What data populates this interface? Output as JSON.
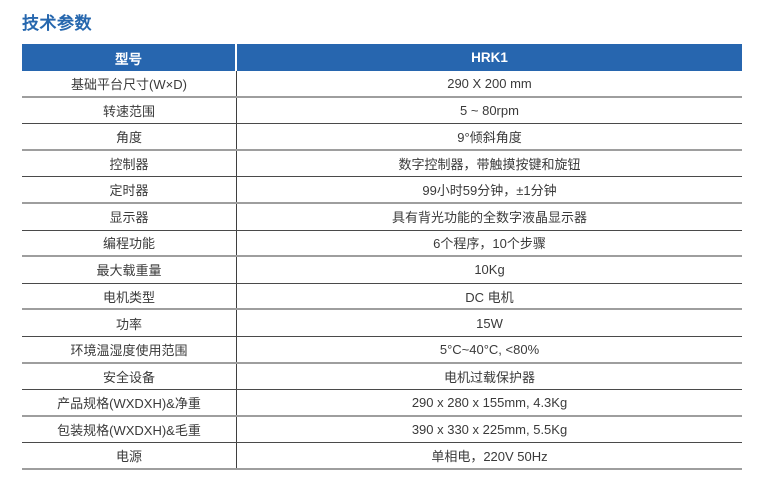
{
  "page": {
    "title": "技术参数"
  },
  "colors": {
    "accent_blue": "#2766af",
    "title_blue": "#2667ae",
    "header_text": "#ffffff",
    "body_text": "#3a3a3a",
    "grid_line_dark": "#4a4a4a",
    "grid_line_light": "#9e9e9e"
  },
  "table": {
    "header": {
      "col1": "型号",
      "col2": "HRK1"
    },
    "rows": [
      {
        "label": "基础平台尺寸(W×D)",
        "value": "290 X 200 mm"
      },
      {
        "label": "转速范围",
        "value": "5 ~ 80rpm"
      },
      {
        "label": "角度",
        "value": "9°倾斜角度"
      },
      {
        "label": "控制器",
        "value": "数字控制器，带触摸按键和旋钮"
      },
      {
        "label": "定时器",
        "value": "99小时59分钟，±1分钟"
      },
      {
        "label": "显示器",
        "value": "具有背光功能的全数字液晶显示器"
      },
      {
        "label": "编程功能",
        "value": "6个程序，10个步骤"
      },
      {
        "label": "最大载重量",
        "value": "10Kg"
      },
      {
        "label": "电机类型",
        "value": "DC 电机"
      },
      {
        "label": "功率",
        "value": "15W"
      },
      {
        "label": "环境温湿度使用范围",
        "value": "5°C~40°C, <80%"
      },
      {
        "label": "安全设备",
        "value": "电机过载保护器"
      },
      {
        "label": "产品规格(WXDXH)&净重",
        "value": "290 x 280 x 155mm, 4.3Kg"
      },
      {
        "label": "包装规格(WXDXH)&毛重",
        "value": "390 x 330 x 225mm, 5.5Kg"
      },
      {
        "label": "电源",
        "value": "单相电，220V 50Hz"
      }
    ]
  }
}
